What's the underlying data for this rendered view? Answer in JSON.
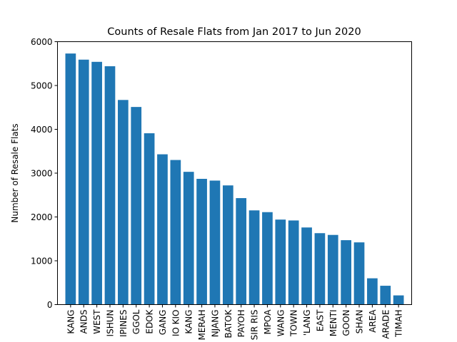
{
  "chart_data": {
    "type": "bar",
    "title": "Counts of Resale Flats from Jan 2017 to Jun 2020",
    "xlabel": "",
    "ylabel": "Number of Resale Flats",
    "ylim": [
      0,
      6000
    ],
    "yticks": [
      0,
      1000,
      2000,
      3000,
      4000,
      5000,
      6000
    ],
    "grid": false,
    "bar_color": "#1f77b4",
    "categories": [
      "KANG",
      "ANDS",
      "WEST",
      "ISHUN",
      "IPINES",
      "GGOL",
      "EDOK",
      "GANG",
      "IO KIO",
      "KANG",
      "MERAH",
      "NJANG",
      "BATOK",
      "PAYOH",
      "SIR RIS",
      "MPOA",
      "WANG",
      "TOWN",
      "'LANG",
      "EAST",
      "MENTI",
      "GOON",
      "SHAN",
      "AREA",
      "ARADE",
      "TIMAH"
    ],
    "values": [
      5730,
      5590,
      5540,
      5440,
      4670,
      4510,
      3910,
      3430,
      3300,
      3030,
      2870,
      2830,
      2720,
      2430,
      2150,
      2110,
      1940,
      1920,
      1760,
      1630,
      1590,
      1470,
      1420,
      600,
      430,
      210
    ]
  }
}
